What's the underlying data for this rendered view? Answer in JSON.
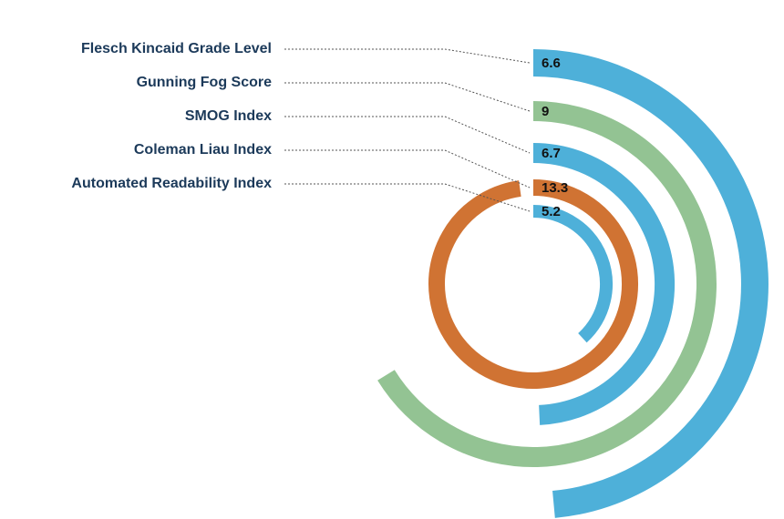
{
  "chart_data": {
    "type": "radial-bar",
    "title": "",
    "series": [
      {
        "name": "Flesch Kincaid Grade Level",
        "value": 6.6,
        "value_label": "6.6",
        "color": "#4eb0d9"
      },
      {
        "name": "Gunning Fog Score",
        "value": 9,
        "value_label": "9",
        "color": "#93c393"
      },
      {
        "name": "SMOG Index",
        "value": 6.7,
        "value_label": "6.7",
        "color": "#4eb0d9"
      },
      {
        "name": "Coleman Liau Index",
        "value": 13.3,
        "value_label": "13.3",
        "color": "#d07333"
      },
      {
        "name": "Automated Readability Index",
        "value": 5.2,
        "value_label": "5.2",
        "color": "#4eb0d9"
      }
    ],
    "legend": "left",
    "grid": false
  }
}
